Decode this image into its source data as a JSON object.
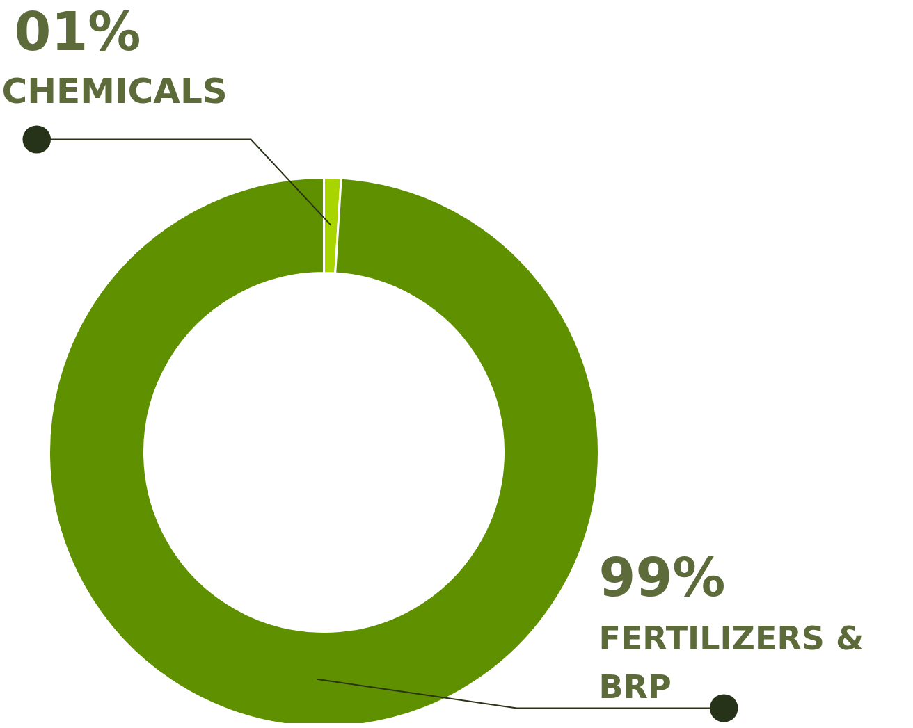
{
  "chart_data": {
    "type": "donut",
    "categories": [
      "CHEMICALS",
      "FERTILIZERS & BRP"
    ],
    "values": [
      1,
      99
    ],
    "colors": [
      "#a8d400",
      "#5f9000"
    ],
    "value_labels": [
      "01%",
      "99%"
    ]
  }
}
